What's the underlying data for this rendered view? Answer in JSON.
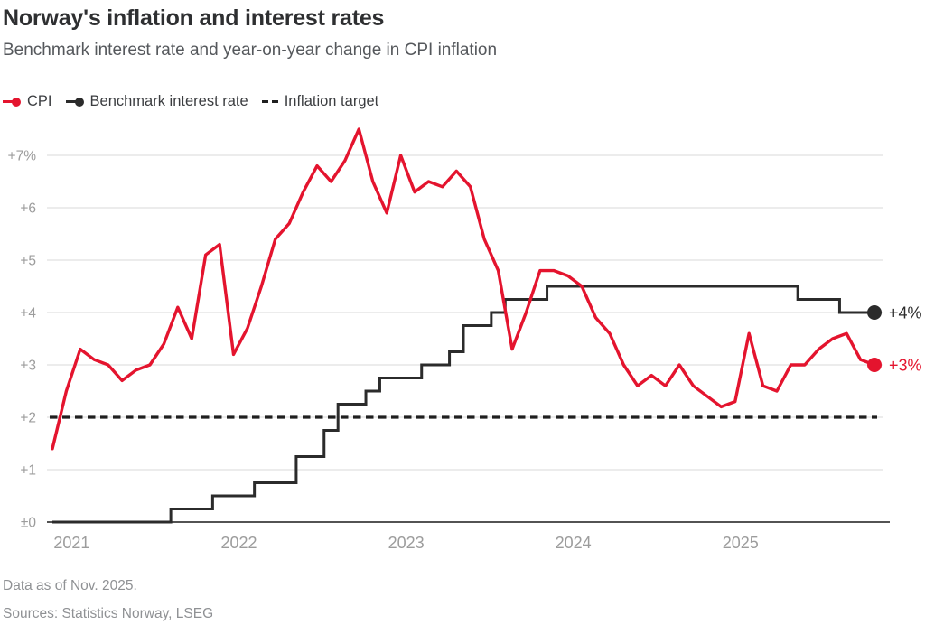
{
  "header": {
    "title": "Norway's inflation and interest rates",
    "subtitle": "Benchmark interest rate and year-on-year change in CPI inflation"
  },
  "legend": {
    "items": [
      {
        "label": "CPI",
        "color": "#e4142e",
        "marker": "line-dot"
      },
      {
        "label": "Benchmark interest rate",
        "color": "#2b2b2b",
        "marker": "line-dot"
      },
      {
        "label": "Inflation target",
        "color": "#1f1f1f",
        "marker": "dashes"
      }
    ]
  },
  "chart_data": {
    "type": "line",
    "title": "Norway's inflation and interest rates",
    "subtitle": "Benchmark interest rate and year-on-year change in CPI inflation",
    "x_unit": "month",
    "x_monthly_start": "Dec 2020",
    "x_monthly_end": "Nov 2025",
    "xtick_labels": [
      "2021",
      "2022",
      "2023",
      "2024",
      "2025"
    ],
    "yticks": [
      0,
      1,
      2,
      3,
      4,
      5,
      6,
      7
    ],
    "ytick_labels": [
      "±0",
      "+1",
      "+2",
      "+3",
      "+4",
      "+5",
      "+6",
      "+7%"
    ],
    "ylim": [
      0,
      7.6
    ],
    "grid": "horizontal",
    "legend_position": "top-left",
    "series": [
      {
        "name": "CPI",
        "style": "line",
        "color": "#e4142e",
        "values": [
          1.4,
          2.5,
          3.3,
          3.1,
          3.0,
          2.7,
          2.9,
          3.0,
          3.4,
          4.1,
          3.5,
          5.1,
          5.3,
          3.2,
          3.7,
          4.5,
          5.4,
          5.7,
          6.3,
          6.8,
          6.5,
          6.9,
          7.5,
          6.5,
          5.9,
          7.0,
          6.3,
          6.5,
          6.4,
          6.7,
          6.4,
          5.4,
          4.8,
          3.3,
          4.0,
          4.8,
          4.8,
          4.7,
          4.5,
          3.9,
          3.6,
          3.0,
          2.6,
          2.8,
          2.6,
          3.0,
          2.6,
          2.4,
          2.2,
          2.3,
          3.6,
          2.6,
          2.5,
          3.0,
          3.0,
          3.3,
          3.5,
          3.6,
          3.1,
          3.0
        ]
      },
      {
        "name": "Benchmark interest rate",
        "style": "step",
        "color": "#2b2b2b",
        "values": [
          0,
          0,
          0,
          0,
          0,
          0,
          0,
          0,
          0,
          0.25,
          0.25,
          0.25,
          0.5,
          0.5,
          0.5,
          0.75,
          0.75,
          0.75,
          1.25,
          1.25,
          1.75,
          2.25,
          2.25,
          2.5,
          2.75,
          2.75,
          2.75,
          3.0,
          3.0,
          3.25,
          3.75,
          3.75,
          4.0,
          4.25,
          4.25,
          4.25,
          4.5,
          4.5,
          4.5,
          4.5,
          4.5,
          4.5,
          4.5,
          4.5,
          4.5,
          4.5,
          4.5,
          4.5,
          4.5,
          4.5,
          4.5,
          4.5,
          4.5,
          4.5,
          4.25,
          4.25,
          4.25,
          4.0,
          4.0,
          4.0
        ]
      },
      {
        "name": "Inflation target",
        "style": "dashed-horizontal",
        "color": "#1f1f1f",
        "value": 2
      }
    ],
    "end_labels": [
      {
        "text": "+4%",
        "value": 4,
        "color": "#2b2b2b"
      },
      {
        "text": "+3%",
        "value": 3,
        "color": "#e4142e"
      }
    ],
    "colors": {
      "grid": "#d9d9d9",
      "axis": "#535353",
      "tick_labels": "#9c9c9c"
    }
  },
  "footer": {
    "note": "Data as of Nov. 2025.",
    "sources": "Sources: Statistics Norway, LSEG"
  }
}
